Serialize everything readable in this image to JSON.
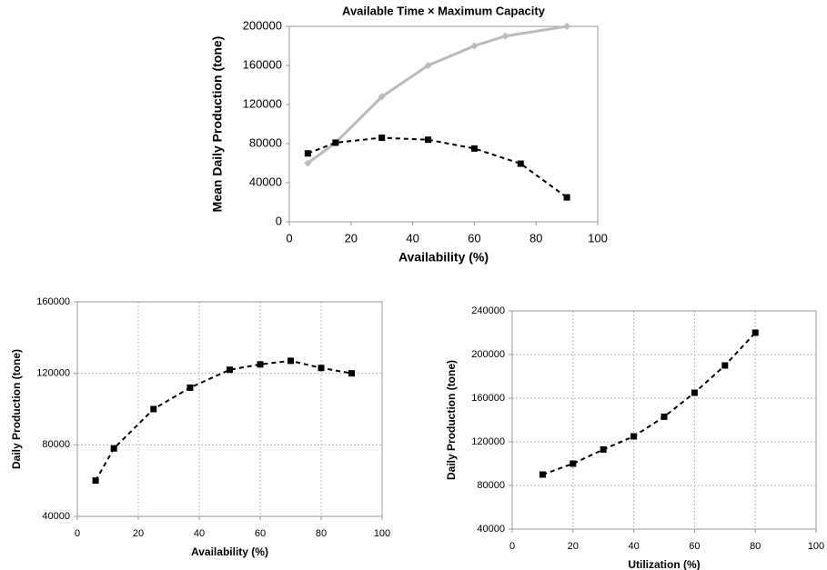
{
  "chart_data": [
    {
      "type": "line",
      "title": "Available Time × Maximum Capacity",
      "x_label": "Availability (%)",
      "y_label": "Mean Daily Production (tone)",
      "x": [
        6,
        15,
        30,
        45,
        60,
        70,
        90
      ],
      "series": [
        {
          "color": "#bbbbbb",
          "line_style": "solid",
          "marker": "diamond",
          "values": [
            60000,
            81000,
            128000,
            160000,
            180000,
            190000,
            200000
          ]
        },
        {
          "color": "#000000",
          "line_style": "dashed",
          "marker": "square",
          "x": [
            6,
            15,
            30,
            45,
            60,
            75,
            90
          ],
          "values": [
            70000,
            81000,
            86000,
            84000,
            75000,
            59500,
            25000
          ]
        }
      ],
      "xlim": [
        0,
        100
      ],
      "xticks": [
        0,
        20,
        40,
        60,
        80,
        100
      ],
      "ylim": [
        0,
        200000
      ],
      "yticks": [
        0,
        40000,
        80000,
        120000,
        160000,
        200000
      ],
      "grid": false
    },
    {
      "type": "line",
      "x_label": "Availability (%)",
      "y_label": "Daily Production (tone)",
      "x": [
        6,
        12,
        25,
        37,
        50,
        60,
        70,
        80,
        90
      ],
      "series": [
        {
          "color": "#000000",
          "line_style": "dashed",
          "marker": "square",
          "values": [
            60000,
            78000,
            100000,
            112000,
            122000,
            125000,
            127000,
            123000,
            120000
          ]
        }
      ],
      "xlim": [
        0,
        100
      ],
      "xticks": [
        0,
        20,
        40,
        60,
        80,
        100
      ],
      "ylim": [
        40000,
        160000
      ],
      "yticks": [
        40000,
        80000,
        120000,
        160000
      ],
      "grid": true
    },
    {
      "type": "line",
      "x_label": "Utilization (%)",
      "y_label": "Daily Production (tone)",
      "x": [
        10,
        20,
        30,
        40,
        50,
        60,
        70,
        80
      ],
      "series": [
        {
          "color": "#000000",
          "line_style": "dashed",
          "marker": "square",
          "values": [
            90000,
            100000,
            113000,
            125000,
            143000,
            165000,
            190000,
            220000
          ]
        }
      ],
      "xlim": [
        0,
        100
      ],
      "xticks": [
        0,
        20,
        40,
        60,
        80,
        100
      ],
      "ylim": [
        40000,
        240000
      ],
      "yticks": [
        40000,
        80000,
        120000,
        160000,
        200000,
        240000
      ],
      "grid": true
    }
  ]
}
